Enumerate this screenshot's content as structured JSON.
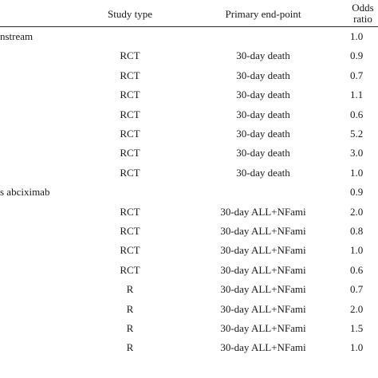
{
  "header": {
    "study_type": "Study type",
    "primary_endpoint": "Primary end-point",
    "odds_ratio_line1": "Odds",
    "odds_ratio_line2": "ratio"
  },
  "rows": [
    {
      "name": "nstream",
      "study_type": "",
      "endpoint": "",
      "odds_ratio": "1.0"
    },
    {
      "name": "",
      "study_type": "RCT",
      "endpoint": "30-day death",
      "odds_ratio": "0.9"
    },
    {
      "name": "",
      "study_type": "RCT",
      "endpoint": "30-day death",
      "odds_ratio": "0.7"
    },
    {
      "name": "",
      "study_type": "RCT",
      "endpoint": "30-day death",
      "odds_ratio": "1.1"
    },
    {
      "name": "",
      "study_type": "RCT",
      "endpoint": "30-day death",
      "odds_ratio": "0.6"
    },
    {
      "name": "",
      "study_type": "RCT",
      "endpoint": "30-day death",
      "odds_ratio": "5.2"
    },
    {
      "name": "",
      "study_type": "RCT",
      "endpoint": "30-day death",
      "odds_ratio": "3.0"
    },
    {
      "name": "",
      "study_type": "RCT",
      "endpoint": "30-day death",
      "odds_ratio": "1.0"
    },
    {
      "name": "s abciximab",
      "study_type": "",
      "endpoint": "",
      "odds_ratio": "0.9"
    },
    {
      "name": "",
      "study_type": "RCT",
      "endpoint": "30-day ALL+NFami",
      "odds_ratio": "2.0"
    },
    {
      "name": "",
      "study_type": "RCT",
      "endpoint": "30-day ALL+NFami",
      "odds_ratio": "0.8"
    },
    {
      "name": "",
      "study_type": "RCT",
      "endpoint": "30-day ALL+NFami",
      "odds_ratio": "1.0"
    },
    {
      "name": "",
      "study_type": "RCT",
      "endpoint": "30-day ALL+NFami",
      "odds_ratio": "0.6"
    },
    {
      "name": "",
      "study_type": "R",
      "endpoint": "30-day ALL+NFami",
      "odds_ratio": "0.7"
    },
    {
      "name": "",
      "study_type": "R",
      "endpoint": "30-day ALL+NFami",
      "odds_ratio": "2.0"
    },
    {
      "name": "",
      "study_type": "R",
      "endpoint": "30-day ALL+NFami",
      "odds_ratio": "1.5"
    },
    {
      "name": "",
      "study_type": "R",
      "endpoint": "30-day ALL+NFami",
      "odds_ratio": "1.0"
    }
  ]
}
